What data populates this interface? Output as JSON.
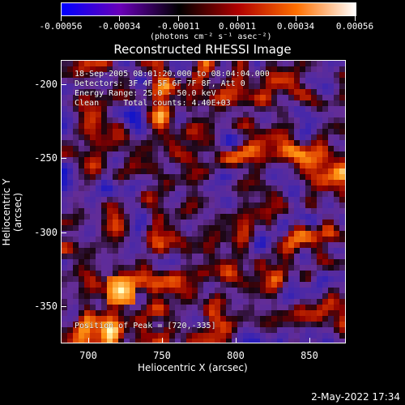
{
  "colorbar": {
    "tick_labels": [
      "-0.00056",
      "-0.00034",
      "-0.00011",
      "0.00011",
      "0.00034",
      "0.00056"
    ],
    "units": "(photons cm⁻² s⁻¹ asec⁻²)",
    "gradient_colors": [
      "#0000ff",
      "#6a00b8",
      "#000000",
      "#b00000",
      "#ff7000",
      "#ffffff"
    ]
  },
  "title": "Reconstructed RHESSI Image",
  "info": {
    "time_range": "18-Sep-2005 08:01:20.000 to 08:04:04.000",
    "detectors": "Detectors: 3F 4F 5F 6F 7F 8F, Att 0",
    "energy_range": "Energy Range: 25.0 - 50.0 keV",
    "clean": "Clean     Total counts: 4.40E+03",
    "peak": "Position of Peak = [720,-335]"
  },
  "axes": {
    "xlabel": "Heliocentric X (arcsec)",
    "ylabel": "Heliocentric Y (arcsec)",
    "xlim": [
      681,
      874
    ],
    "ylim": [
      -373,
      -181
    ],
    "xticks": [
      "700",
      "750",
      "800",
      "850"
    ],
    "yticks": [
      "-200",
      "-250",
      "-300",
      "-350"
    ]
  },
  "date_stamp": "2-May-2022 17:34",
  "colors": {
    "background": "#000000",
    "foreground": "#ffffff",
    "map_base": "#5a2f8a"
  }
}
